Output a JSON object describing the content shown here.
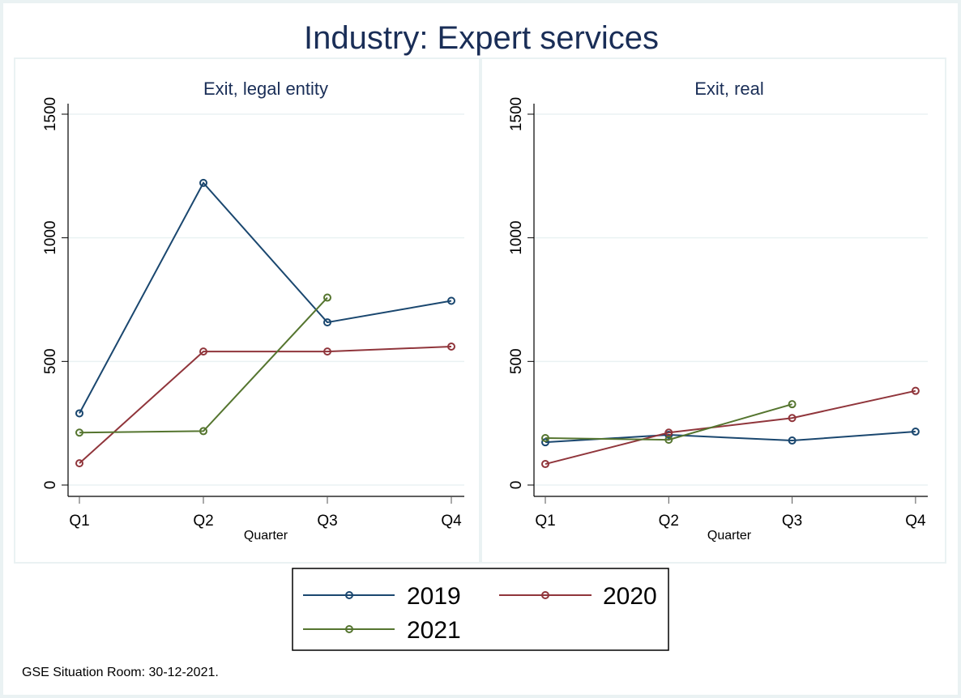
{
  "chart_data": {
    "type": "line",
    "title": "Industry: Expert services",
    "note": "GSE Situation Room: 30-12-2021.",
    "categories": [
      "Q1",
      "Q2",
      "Q3",
      "Q4"
    ],
    "xlabel": "Quarter",
    "ylim": [
      0,
      1500
    ],
    "yticks": [
      "0",
      "500",
      "1000",
      "1500"
    ],
    "grid": true,
    "legend_position": "bottom",
    "colors": {
      "2019": "#1a476f",
      "2020": "#90353b",
      "2021": "#55752f"
    },
    "legend": [
      "2019",
      "2020",
      "2021"
    ],
    "panels": [
      {
        "subtitle": "Exit, legal entity",
        "series": [
          {
            "name": "2019",
            "values": [
              290,
              1222,
              658,
              745
            ]
          },
          {
            "name": "2020",
            "values": [
              88,
              540,
              540,
              560
            ]
          },
          {
            "name": "2021",
            "values": [
              212,
              218,
              758,
              null
            ]
          }
        ]
      },
      {
        "subtitle": "Exit, real",
        "series": [
          {
            "name": "2019",
            "values": [
              173,
              203,
              180,
              216
            ]
          },
          {
            "name": "2020",
            "values": [
              85,
              212,
              271,
              381
            ]
          },
          {
            "name": "2021",
            "values": [
              190,
              183,
              327,
              null
            ]
          }
        ]
      }
    ]
  }
}
